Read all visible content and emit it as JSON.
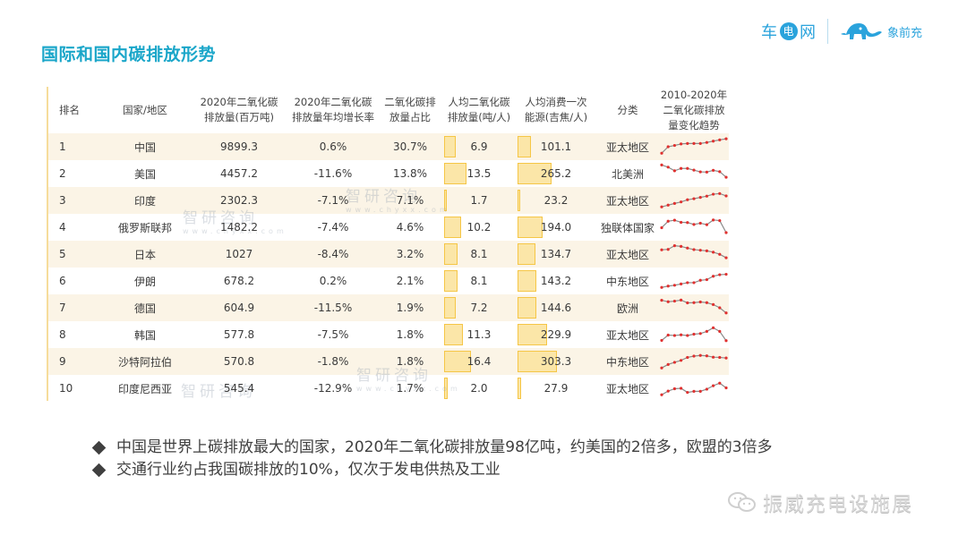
{
  "title": "国际和国内碳排放形势",
  "logos": {
    "brand1_parts": [
      "车",
      "电",
      "网"
    ],
    "brand2": "象前充"
  },
  "watermark": {
    "text": "智研咨询",
    "sub": "www.chyxx.com"
  },
  "table": {
    "headers": [
      [
        "排名"
      ],
      [
        "国家/地区"
      ],
      [
        "2020年二氧化碳",
        "排放量(百万吨)"
      ],
      [
        "2020年二氧化碳",
        "排放量年均增长率"
      ],
      [
        "二氧化碳排",
        "放量占比"
      ],
      [
        "人均二氧化碳",
        "排放量(吨/人)"
      ],
      [
        "人均消费一次",
        "能源(吉焦/人)"
      ],
      [
        "分类"
      ],
      [
        "2010-2020年",
        "二氧化碳排放",
        "量变化趋势"
      ]
    ],
    "rows": [
      {
        "rank": "1",
        "country": "中国",
        "emission": "9899.3",
        "growth": "0.6%",
        "share": "30.7%",
        "per_capita": "6.9",
        "energy": "101.1",
        "region": "亚太地区",
        "trend": [
          2,
          5,
          5.6,
          6.3,
          6.5,
          6.5,
          6.5,
          7,
          7.6,
          8.2,
          8.7
        ]
      },
      {
        "rank": "2",
        "country": "美国",
        "emission": "4457.2",
        "growth": "-11.6%",
        "share": "13.8%",
        "per_capita": "13.5",
        "energy": "265.2",
        "region": "北美洲",
        "trend": [
          9,
          8,
          6.3,
          7.4,
          7.4,
          6.6,
          5.8,
          5.7,
          6.5,
          5.9,
          3.3
        ]
      },
      {
        "rank": "3",
        "country": "印度",
        "emission": "2302.3",
        "growth": "-7.1%",
        "share": "7.1%",
        "per_capita": "1.7",
        "energy": "23.2",
        "region": "亚太地区",
        "trend": [
          2,
          2.8,
          3.6,
          4.3,
          5.3,
          5.8,
          6.4,
          7,
          7.9,
          8.2,
          7.1
        ]
      },
      {
        "rank": "4",
        "country": "俄罗斯联邦",
        "emission": "1482.2",
        "growth": "-7.4%",
        "share": "4.6%",
        "per_capita": "10.2",
        "energy": "194.0",
        "region": "独联体国家",
        "trend": [
          4.8,
          7.8,
          8.3,
          7.3,
          7.2,
          6.3,
          6.9,
          6.2,
          8.4,
          8.1,
          2.5
        ]
      },
      {
        "rank": "5",
        "country": "日本",
        "emission": "1027",
        "growth": "-8.4%",
        "share": "3.2%",
        "per_capita": "8.1",
        "energy": "134.7",
        "region": "亚太地区",
        "trend": [
          7,
          7.2,
          8.9,
          8.6,
          7.8,
          7.1,
          6.8,
          6.5,
          5.9,
          4.9,
          3.3
        ]
      },
      {
        "rank": "6",
        "country": "伊朗",
        "emission": "678.2",
        "growth": "0.2%",
        "share": "2.1%",
        "per_capita": "8.1",
        "energy": "143.2",
        "region": "中东地区",
        "trend": [
          2,
          2.6,
          3,
          3.6,
          4.2,
          4.2,
          5.3,
          5.6,
          7.2,
          7.9,
          8.1
        ]
      },
      {
        "rank": "7",
        "country": "德国",
        "emission": "604.9",
        "growth": "-11.5%",
        "share": "1.9%",
        "per_capita": "7.2",
        "energy": "144.6",
        "region": "欧洲",
        "trend": [
          8.5,
          7.8,
          8.1,
          8.6,
          7.3,
          7.4,
          7.7,
          7.4,
          6.5,
          5,
          2.6
        ]
      },
      {
        "rank": "8",
        "country": "韩国",
        "emission": "577.8",
        "growth": "-7.5%",
        "share": "1.8%",
        "per_capita": "11.3",
        "energy": "229.9",
        "region": "亚太地区",
        "trend": [
          2.3,
          4.8,
          4.6,
          4.9,
          4.6,
          5.2,
          5.5,
          6.5,
          8.2,
          6.5,
          2.2
        ]
      },
      {
        "rank": "9",
        "country": "沙特阿拉伯",
        "emission": "570.8",
        "growth": "-1.8%",
        "share": "1.8%",
        "per_capita": "16.4",
        "energy": "303.3",
        "region": "中东地区",
        "trend": [
          2,
          3.6,
          4.6,
          5.5,
          6.9,
          7.5,
          7.8,
          7.6,
          7,
          6.9,
          6.6
        ]
      },
      {
        "rank": "10",
        "country": "印度尼西亚",
        "emission": "545.4",
        "growth": "-12.9%",
        "share": "1.7%",
        "per_capita": "2.0",
        "energy": "27.9",
        "region": "亚太地区",
        "trend": [
          2,
          3.7,
          4.8,
          5,
          3.1,
          3.6,
          3.6,
          4.6,
          6.2,
          7.4,
          5.2
        ]
      }
    ],
    "per_capita_max": 16.4,
    "energy_max": 303.3
  },
  "bullets": [
    "中国是世界上碳排放最大的国家，2020年二氧化碳排放量98亿吨，约美国的2倍多，欧盟的3倍多",
    "交通行业约占我国碳排放的10%，仅次于发电供热及工业"
  ],
  "footer": {
    "account": "振威充电设施展"
  }
}
